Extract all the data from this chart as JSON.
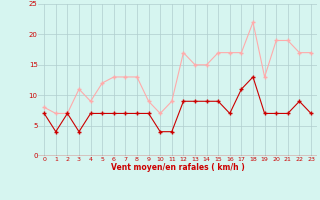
{
  "x": [
    0,
    1,
    2,
    3,
    4,
    5,
    6,
    7,
    8,
    9,
    10,
    11,
    12,
    13,
    14,
    15,
    16,
    17,
    18,
    19,
    20,
    21,
    22,
    23
  ],
  "wind_avg": [
    7,
    4,
    7,
    4,
    7,
    7,
    7,
    7,
    7,
    7,
    4,
    4,
    9,
    9,
    9,
    9,
    7,
    11,
    13,
    7,
    7,
    7,
    9,
    7
  ],
  "wind_gust": [
    8,
    7,
    7,
    11,
    9,
    12,
    13,
    13,
    13,
    9,
    7,
    9,
    17,
    15,
    15,
    17,
    17,
    17,
    22,
    13,
    19,
    19,
    17,
    17
  ],
  "color_avg": "#cc0000",
  "color_gust": "#ffaaaa",
  "bg_color": "#d6f5f0",
  "grid_color": "#b0cece",
  "xlabel": "Vent moyen/en rafales ( km/h )",
  "xlabel_color": "#cc0000",
  "ylim": [
    0,
    25
  ],
  "yticks": [
    0,
    5,
    10,
    15,
    20,
    25
  ],
  "xticks": [
    0,
    1,
    2,
    3,
    4,
    5,
    6,
    7,
    8,
    9,
    10,
    11,
    12,
    13,
    14,
    15,
    16,
    17,
    18,
    19,
    20,
    21,
    22,
    23
  ]
}
